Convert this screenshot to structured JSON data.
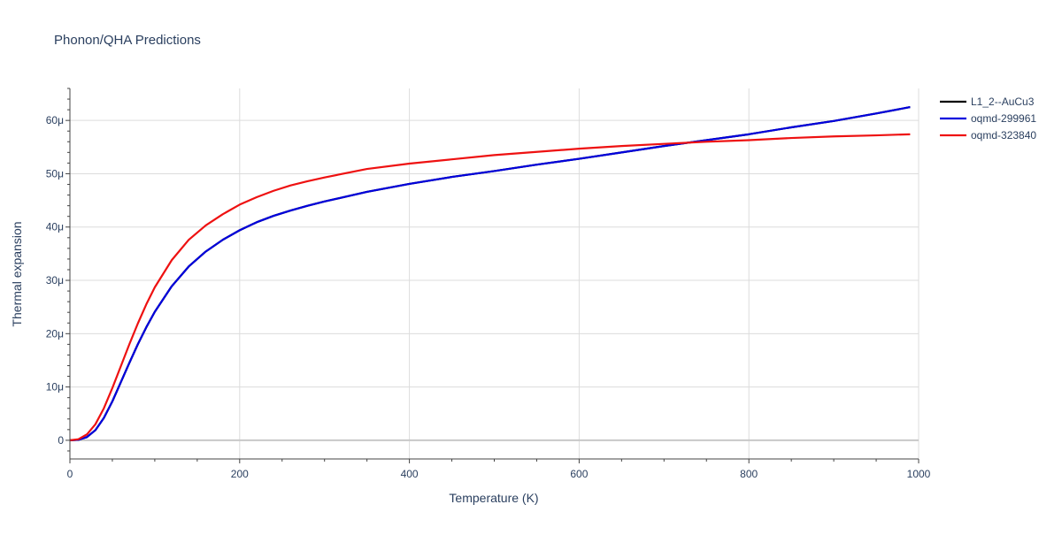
{
  "chart_data": {
    "type": "line",
    "title": "Phonon/QHA Predictions",
    "xlabel": "Temperature (K)",
    "ylabel": "Thermal expansion",
    "xlim": [
      0,
      1000
    ],
    "ylim": [
      -3.5e-06,
      6.6e-05
    ],
    "xticks": [
      0,
      200,
      400,
      600,
      800,
      1000
    ],
    "xtick_labels": [
      "0",
      "200",
      "400",
      "600",
      "800",
      "1000"
    ],
    "yticks": [
      0,
      1e-05,
      2e-05,
      3e-05,
      4e-05,
      5e-05,
      6e-05
    ],
    "ytick_labels": [
      "0",
      "10μ",
      "20μ",
      "30μ",
      "40μ",
      "50μ",
      "60μ"
    ],
    "grid": true,
    "legend_position": "top-right",
    "x": [
      0,
      10,
      20,
      30,
      40,
      50,
      60,
      70,
      80,
      90,
      100,
      120,
      140,
      160,
      180,
      200,
      220,
      240,
      260,
      280,
      300,
      350,
      400,
      450,
      500,
      550,
      600,
      650,
      700,
      750,
      800,
      850,
      900,
      950,
      990
    ],
    "series": [
      {
        "name": "L1_2--AuCu3",
        "color": "#000000",
        "values": [
          0,
          1e-07,
          6e-07,
          1.9e-06,
          4.2e-06,
          7.3e-06,
          1.09e-05,
          1.45e-05,
          1.8e-05,
          2.12e-05,
          2.41e-05,
          2.89e-05,
          3.26e-05,
          3.54e-05,
          3.76e-05,
          3.94e-05,
          4.09e-05,
          4.21e-05,
          4.31e-05,
          4.4e-05,
          4.48e-05,
          4.66e-05,
          4.81e-05,
          4.94e-05,
          5.05e-05,
          5.17e-05,
          5.28e-05,
          5.4e-05,
          5.52e-05,
          5.63e-05,
          5.74e-05,
          5.87e-05,
          5.99e-05,
          6.13e-05,
          6.25e-05
        ]
      },
      {
        "name": "oqmd-299961",
        "color": "#0000dd",
        "values": [
          0,
          1e-07,
          6e-07,
          1.9e-06,
          4.2e-06,
          7.3e-06,
          1.09e-05,
          1.45e-05,
          1.8e-05,
          2.12e-05,
          2.41e-05,
          2.89e-05,
          3.26e-05,
          3.54e-05,
          3.76e-05,
          3.94e-05,
          4.09e-05,
          4.21e-05,
          4.31e-05,
          4.4e-05,
          4.48e-05,
          4.66e-05,
          4.81e-05,
          4.94e-05,
          5.05e-05,
          5.17e-05,
          5.28e-05,
          5.4e-05,
          5.52e-05,
          5.63e-05,
          5.74e-05,
          5.87e-05,
          5.99e-05,
          6.13e-05,
          6.25e-05
        ]
      },
      {
        "name": "oqmd-323840",
        "color": "#ee1111",
        "values": [
          0,
          2e-07,
          1.1e-06,
          3e-06,
          6e-06,
          9.8e-06,
          1.39e-05,
          1.8e-05,
          2.19e-05,
          2.55e-05,
          2.87e-05,
          3.38e-05,
          3.76e-05,
          4.03e-05,
          4.24e-05,
          4.42e-05,
          4.56e-05,
          4.68e-05,
          4.78e-05,
          4.86e-05,
          4.93e-05,
          5.09e-05,
          5.19e-05,
          5.27e-05,
          5.35e-05,
          5.41e-05,
          5.47e-05,
          5.52e-05,
          5.56e-05,
          5.6e-05,
          5.63e-05,
          5.67e-05,
          5.7e-05,
          5.72e-05,
          5.74e-05
        ]
      }
    ]
  }
}
